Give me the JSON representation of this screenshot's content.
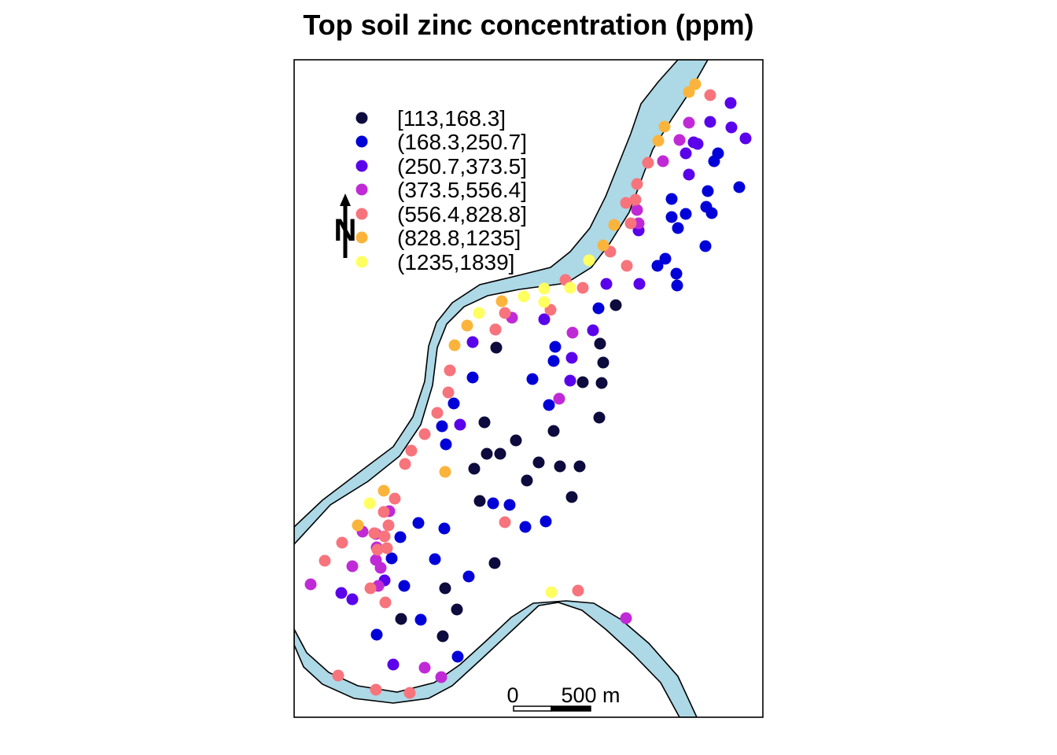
{
  "title": "Top soil zinc concentration (ppm)",
  "colors": {
    "river": "#add8e6",
    "frame": "#000000",
    "classes": [
      "#0d0a3e",
      "#0000d9",
      "#5a00eb",
      "#c02ad6",
      "#f7747c",
      "#fbb43b",
      "#ffff60"
    ]
  },
  "legend": {
    "items": [
      {
        "label": "[113,168.3]",
        "color": "#0d0a3e"
      },
      {
        "label": "(168.3,250.7]",
        "color": "#0000d9"
      },
      {
        "label": "(250.7,373.5]",
        "color": "#5a00eb"
      },
      {
        "label": "(373.5,556.4]",
        "color": "#c02ad6"
      },
      {
        "label": "(556.4,828.8]",
        "color": "#f7747c"
      },
      {
        "label": "(828.8,1235]",
        "color": "#fbb43b"
      },
      {
        "label": "(1235,1839]",
        "color": "#ffff60"
      }
    ]
  },
  "north_arrow": {
    "label": "N",
    "icon": "north-arrow-icon"
  },
  "scale_bar": {
    "start_label": "0",
    "end_label": "500 m"
  }
}
